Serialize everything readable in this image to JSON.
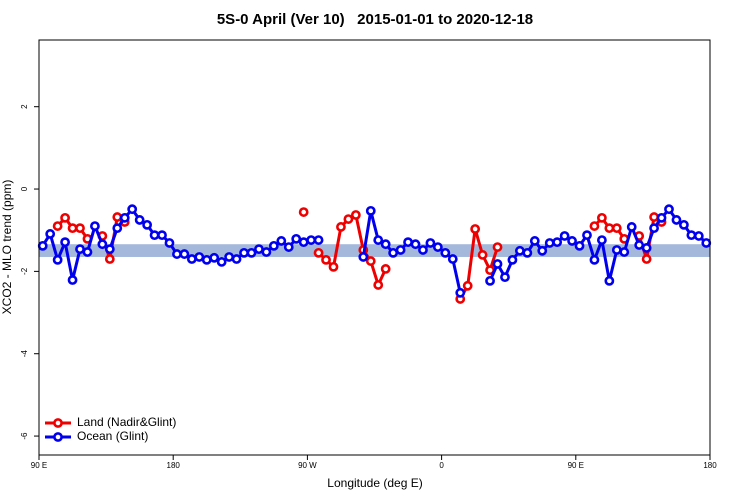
{
  "chart_data": {
    "type": "line",
    "title": "5S-0 April (Ver 10)   2015-01-01 to 2020-12-18",
    "xlabel": "Longitude (deg E)",
    "ylabel": "XCO2 - MLO trend (ppm)",
    "x": [
      92.5,
      97.5,
      102.5,
      107.5,
      112.5,
      117.5,
      122.5,
      127.5,
      132.5,
      137.5,
      142.5,
      147.5,
      152.5,
      157.5,
      162.5,
      167.5,
      172.5,
      177.5,
      182.5,
      187.5,
      192.5,
      197.5,
      202.5,
      207.5,
      212.5,
      217.5,
      222.5,
      227.5,
      232.5,
      237.5,
      242.5,
      247.5,
      252.5,
      257.5,
      262.5,
      267.5,
      272.5,
      277.5,
      282.5,
      287.5,
      292.5,
      297.5,
      302.5,
      307.5,
      312.5,
      317.5,
      322.5,
      327.5,
      332.5,
      337.5,
      342.5,
      347.5,
      352.5,
      357.5,
      362.5,
      367.5,
      372.5,
      377.5,
      382.5,
      387.5,
      392.5,
      397.5,
      402.5,
      407.5,
      412.5,
      417.5,
      422.5,
      427.5,
      432.5,
      437.5,
      442.5,
      447.5,
      452.5,
      457.5,
      462.5,
      467.5,
      472.5,
      477.5,
      482.5,
      487.5,
      492.5,
      497.5,
      502.5,
      507.5,
      512.5,
      517.5,
      522.5,
      527.5,
      532.5,
      537.5
    ],
    "series": [
      {
        "name": "Land (Nadir&Glint)",
        "color": "#ee0000",
        "values": [
          null,
          null,
          -0.9,
          -0.7,
          -0.95,
          -0.95,
          -1.21,
          null,
          -1.14,
          -1.7,
          -0.68,
          -0.8,
          null,
          null,
          null,
          null,
          null,
          null,
          null,
          null,
          null,
          null,
          null,
          null,
          null,
          null,
          null,
          null,
          null,
          null,
          null,
          null,
          null,
          null,
          null,
          -0.56,
          null,
          -1.55,
          -1.72,
          -1.89,
          -0.92,
          -0.73,
          -0.63,
          -1.48,
          -1.75,
          -2.33,
          -1.94,
          null,
          null,
          null,
          null,
          null,
          null,
          null,
          null,
          null,
          -2.67,
          -2.35,
          -0.97,
          -1.6,
          -1.97,
          -1.41,
          null,
          null,
          null,
          null,
          null,
          null,
          null,
          null,
          null,
          null,
          null,
          null,
          -0.9,
          -0.7,
          -0.95,
          -0.95,
          -1.21,
          null,
          -1.14,
          -1.7,
          -0.68,
          -0.8,
          null,
          null,
          null,
          null,
          null,
          null
        ]
      },
      {
        "name": "Ocean (Glint)",
        "color": "#0000ee",
        "values": [
          -1.38,
          -1.09,
          -1.72,
          -1.29,
          -2.21,
          -1.46,
          -1.53,
          -0.9,
          -1.34,
          -1.46,
          -0.95,
          -0.7,
          -0.49,
          -0.75,
          -0.87,
          -1.12,
          -1.12,
          -1.31,
          -1.58,
          -1.58,
          -1.7,
          -1.65,
          -1.72,
          -1.67,
          -1.77,
          -1.65,
          -1.7,
          -1.55,
          -1.55,
          -1.46,
          -1.53,
          -1.38,
          -1.26,
          -1.41,
          -1.21,
          -1.29,
          -1.24,
          -1.24,
          null,
          null,
          null,
          null,
          null,
          -1.65,
          -0.53,
          -1.24,
          -1.34,
          -1.55,
          -1.48,
          -1.29,
          -1.34,
          -1.48,
          -1.31,
          -1.41,
          -1.55,
          -1.7,
          -2.52,
          null,
          null,
          null,
          -2.23,
          -1.82,
          -2.14,
          -1.72,
          -1.5,
          -1.55,
          -1.26,
          -1.5,
          -1.31,
          -1.29,
          -1.14,
          -1.26,
          -1.38,
          -1.12,
          -1.72,
          -1.24,
          -2.23,
          -1.48,
          -1.53,
          -0.92,
          -1.36,
          -1.43,
          -0.95,
          -0.7,
          -0.49,
          -0.75,
          -0.87,
          -1.12,
          -1.14,
          -1.31
        ]
      }
    ],
    "band": {
      "ylim": [
        -1.65,
        -1.34
      ],
      "color": "#a4b8dc"
    },
    "xlim": [
      90,
      540
    ],
    "xticks": [
      {
        "value": 90,
        "label": "90 E"
      },
      180,
      {
        "value": 270,
        "label": "90 W"
      },
      {
        "value": 360,
        "label": "0"
      },
      {
        "value": 450,
        "label": "90 E"
      },
      {
        "value": 540,
        "label": "180"
      }
    ],
    "ylim": [
      -6.46,
      3.62
    ],
    "yticks": [
      -6,
      -4,
      -2,
      0,
      2
    ],
    "legend": "bottom-left"
  }
}
